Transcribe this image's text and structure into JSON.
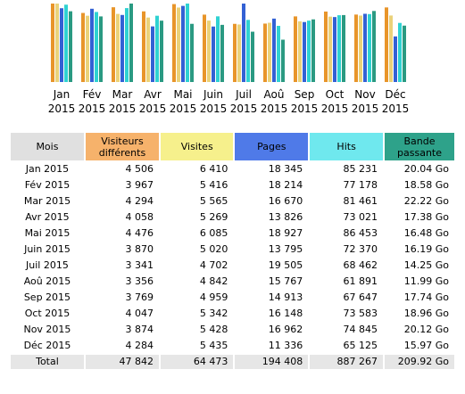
{
  "colors": {
    "visitors": "#e8952a",
    "visits": "#ead27a",
    "pages": "#3361d4",
    "hits": "#2fd2d2",
    "bandwidth": "#2a9a82"
  },
  "chart_data": {
    "type": "bar",
    "categories": [
      "Jan 2015",
      "Fév 2015",
      "Mar 2015",
      "Avr 2015",
      "Mai 2015",
      "Juin 2015",
      "Juil 2015",
      "Aoû 2015",
      "Sep 2015",
      "Oct 2015",
      "Nov 2015",
      "Déc 2015"
    ],
    "category_labels": [
      [
        "Jan",
        "2015"
      ],
      [
        "Fév",
        "2015"
      ],
      [
        "Mar",
        "2015"
      ],
      [
        "Avr",
        "2015"
      ],
      [
        "Mai",
        "2015"
      ],
      [
        "Juin",
        "2015"
      ],
      [
        "Juil",
        "2015"
      ],
      [
        "Aoû",
        "2015"
      ],
      [
        "Sep",
        "2015"
      ],
      [
        "Oct",
        "2015"
      ],
      [
        "Nov",
        "2015"
      ],
      [
        "Déc",
        "2015"
      ]
    ],
    "series": [
      {
        "name": "Visiteurs différents",
        "color": "#e8952a",
        "values": [
          4506,
          3967,
          4294,
          4058,
          4476,
          3870,
          3341,
          3356,
          3769,
          4047,
          3874,
          4284
        ]
      },
      {
        "name": "Visites",
        "color": "#ead27a",
        "values": [
          6410,
          5416,
          5565,
          5269,
          6085,
          5020,
          4702,
          4842,
          4959,
          5342,
          5428,
          5435
        ]
      },
      {
        "name": "Pages",
        "color": "#3361d4",
        "values": [
          18345,
          18214,
          16670,
          13826,
          18927,
          13795,
          19505,
          15767,
          14913,
          16148,
          16962,
          11336
        ]
      },
      {
        "name": "Hits",
        "color": "#2fd2d2",
        "values": [
          85231,
          77178,
          81461,
          73021,
          86453,
          72370,
          68462,
          61891,
          67647,
          73583,
          74845,
          65125
        ]
      },
      {
        "name": "Bande passante",
        "color": "#2a9a82",
        "values": [
          20.04,
          18.58,
          22.22,
          17.38,
          16.48,
          16.19,
          14.25,
          11.99,
          17.74,
          18.96,
          20.12,
          15.97
        ]
      }
    ]
  },
  "table": {
    "headers": {
      "month": "Mois",
      "visitors": "Visiteurs différents",
      "visits": "Visites",
      "pages": "Pages",
      "hits": "Hits",
      "bandwidth": "Bande passante"
    },
    "rows": [
      {
        "month": "Jan 2015",
        "visitors": "4 506",
        "visits": "6 410",
        "pages": "18 345",
        "hits": "85 231",
        "bandwidth": "20.04 Go"
      },
      {
        "month": "Fév 2015",
        "visitors": "3 967",
        "visits": "5 416",
        "pages": "18 214",
        "hits": "77 178",
        "bandwidth": "18.58 Go"
      },
      {
        "month": "Mar 2015",
        "visitors": "4 294",
        "visits": "5 565",
        "pages": "16 670",
        "hits": "81 461",
        "bandwidth": "22.22 Go"
      },
      {
        "month": "Avr 2015",
        "visitors": "4 058",
        "visits": "5 269",
        "pages": "13 826",
        "hits": "73 021",
        "bandwidth": "17.38 Go"
      },
      {
        "month": "Mai 2015",
        "visitors": "4 476",
        "visits": "6 085",
        "pages": "18 927",
        "hits": "86 453",
        "bandwidth": "16.48 Go"
      },
      {
        "month": "Juin 2015",
        "visitors": "3 870",
        "visits": "5 020",
        "pages": "13 795",
        "hits": "72 370",
        "bandwidth": "16.19 Go"
      },
      {
        "month": "Juil 2015",
        "visitors": "3 341",
        "visits": "4 702",
        "pages": "19 505",
        "hits": "68 462",
        "bandwidth": "14.25 Go"
      },
      {
        "month": "Aoû 2015",
        "visitors": "3 356",
        "visits": "4 842",
        "pages": "15 767",
        "hits": "61 891",
        "bandwidth": "11.99 Go"
      },
      {
        "month": "Sep 2015",
        "visitors": "3 769",
        "visits": "4 959",
        "pages": "14 913",
        "hits": "67 647",
        "bandwidth": "17.74 Go"
      },
      {
        "month": "Oct 2015",
        "visitors": "4 047",
        "visits": "5 342",
        "pages": "16 148",
        "hits": "73 583",
        "bandwidth": "18.96 Go"
      },
      {
        "month": "Nov 2015",
        "visitors": "3 874",
        "visits": "5 428",
        "pages": "16 962",
        "hits": "74 845",
        "bandwidth": "20.12 Go"
      },
      {
        "month": "Déc 2015",
        "visitors": "4 284",
        "visits": "5 435",
        "pages": "11 336",
        "hits": "65 125",
        "bandwidth": "15.97 Go"
      }
    ],
    "total": {
      "month": "Total",
      "visitors": "47 842",
      "visits": "64 473",
      "pages": "194 408",
      "hits": "887 267",
      "bandwidth": "209.92 Go"
    }
  }
}
